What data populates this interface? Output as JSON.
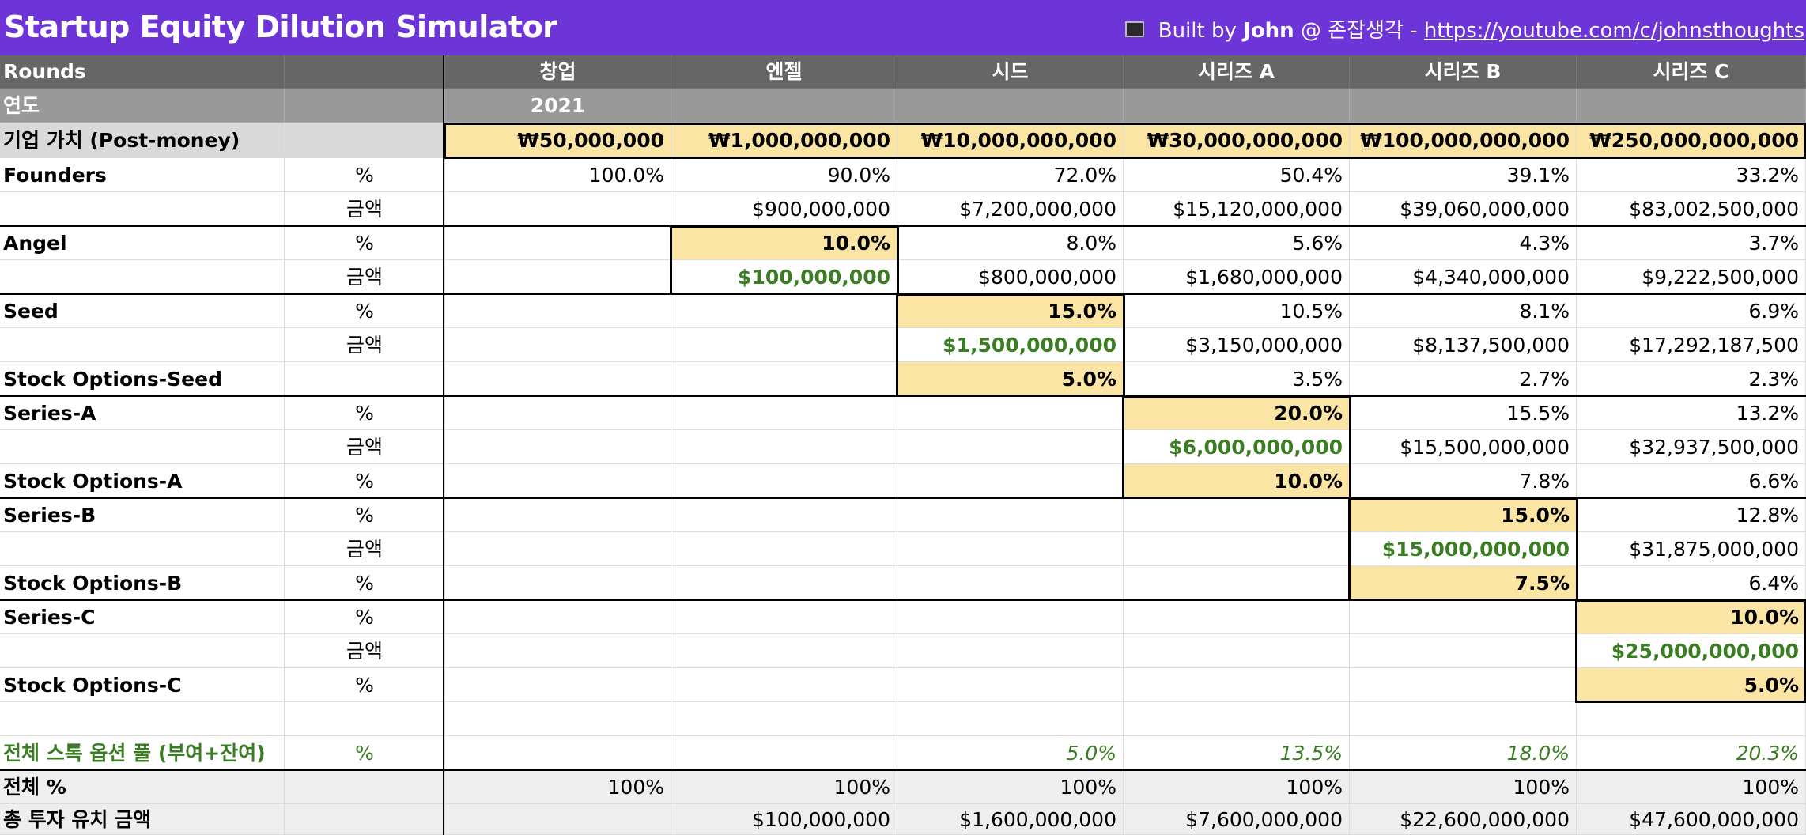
{
  "app": {
    "title": "Startup Equity Dilution Simulator",
    "credit_prefix": "Built by ",
    "credit_name": "John",
    "credit_mid": " @ 존잡생각 - ",
    "credit_link": "https://youtube.com/c/johnsthoughts"
  },
  "header": {
    "rounds_label": "Rounds",
    "columns": [
      "창업",
      "엔젤",
      "시드",
      "시리즈 A",
      "시리즈 B",
      "시리즈 C"
    ]
  },
  "year": {
    "label": "연도",
    "value": "2021"
  },
  "valuation": {
    "label": "기업 가치 (Post-money)",
    "values": [
      "₩50,000,000",
      "₩1,000,000,000",
      "₩10,000,000,000",
      "₩30,000,000,000",
      "₩100,000,000,000",
      "₩250,000,000,000"
    ]
  },
  "rows": [
    {
      "name": "Founders",
      "unit": "%",
      "values": [
        "100.0%",
        "90.0%",
        "72.0%",
        "50.4%",
        "39.1%",
        "33.2%"
      ]
    },
    {
      "name": "",
      "unit": "금액",
      "values": [
        "",
        "$900,000,000",
        "$7,200,000,000",
        "$15,120,000,000",
        "$39,060,000,000",
        "$83,002,500,000"
      ]
    },
    {
      "name": "Angel",
      "unit": "%",
      "values": [
        "",
        "10.0%",
        "8.0%",
        "5.6%",
        "4.3%",
        "3.7%"
      ]
    },
    {
      "name": "",
      "unit": "금액",
      "values": [
        "",
        "$100,000,000",
        "$800,000,000",
        "$1,680,000,000",
        "$4,340,000,000",
        "$9,222,500,000"
      ]
    },
    {
      "name": "Seed",
      "unit": "%",
      "values": [
        "",
        "",
        "15.0%",
        "10.5%",
        "8.1%",
        "6.9%"
      ]
    },
    {
      "name": "",
      "unit": "금액",
      "values": [
        "",
        "",
        "$1,500,000,000",
        "$3,150,000,000",
        "$8,137,500,000",
        "$17,292,187,500"
      ]
    },
    {
      "name": "Stock Options-Seed",
      "unit": "",
      "values": [
        "",
        "",
        "5.0%",
        "3.5%",
        "2.7%",
        "2.3%"
      ]
    },
    {
      "name": "Series-A",
      "unit": "%",
      "values": [
        "",
        "",
        "",
        "20.0%",
        "15.5%",
        "13.2%"
      ]
    },
    {
      "name": "",
      "unit": "금액",
      "values": [
        "",
        "",
        "",
        "$6,000,000,000",
        "$15,500,000,000",
        "$32,937,500,000"
      ]
    },
    {
      "name": "Stock Options-A",
      "unit": "%",
      "values": [
        "",
        "",
        "",
        "10.0%",
        "7.8%",
        "6.6%"
      ]
    },
    {
      "name": "Series-B",
      "unit": "%",
      "values": [
        "",
        "",
        "",
        "",
        "15.0%",
        "12.8%"
      ]
    },
    {
      "name": "",
      "unit": "금액",
      "values": [
        "",
        "",
        "",
        "",
        "$15,000,000,000",
        "$31,875,000,000"
      ]
    },
    {
      "name": "Stock Options-B",
      "unit": "%",
      "values": [
        "",
        "",
        "",
        "",
        "7.5%",
        "6.4%"
      ]
    },
    {
      "name": "Series-C",
      "unit": "%",
      "values": [
        "",
        "",
        "",
        "",
        "",
        "10.0%"
      ]
    },
    {
      "name": "",
      "unit": "금액",
      "values": [
        "",
        "",
        "",
        "",
        "",
        "$25,000,000,000"
      ]
    },
    {
      "name": "Stock Options-C",
      "unit": "%",
      "values": [
        "",
        "",
        "",
        "",
        "",
        "5.0%"
      ]
    },
    {
      "name": "",
      "unit": "",
      "values": [
        "",
        "",
        "",
        "",
        "",
        ""
      ]
    },
    {
      "name": "전체 스톡 옵션 풀 (부여+잔여)",
      "unit": "%",
      "values": [
        "",
        "",
        "5.0%",
        "13.5%",
        "18.0%",
        "20.3%"
      ]
    },
    {
      "name": "전체 %",
      "unit": "",
      "values": [
        "100%",
        "100%",
        "100%",
        "100%",
        "100%",
        "100%"
      ]
    },
    {
      "name": "총 투자 유치 금액",
      "unit": "",
      "values": [
        "",
        "$100,000,000",
        "$1,600,000,000",
        "$7,600,000,000",
        "$22,600,000,000",
        "$47,600,000,000"
      ]
    }
  ]
}
